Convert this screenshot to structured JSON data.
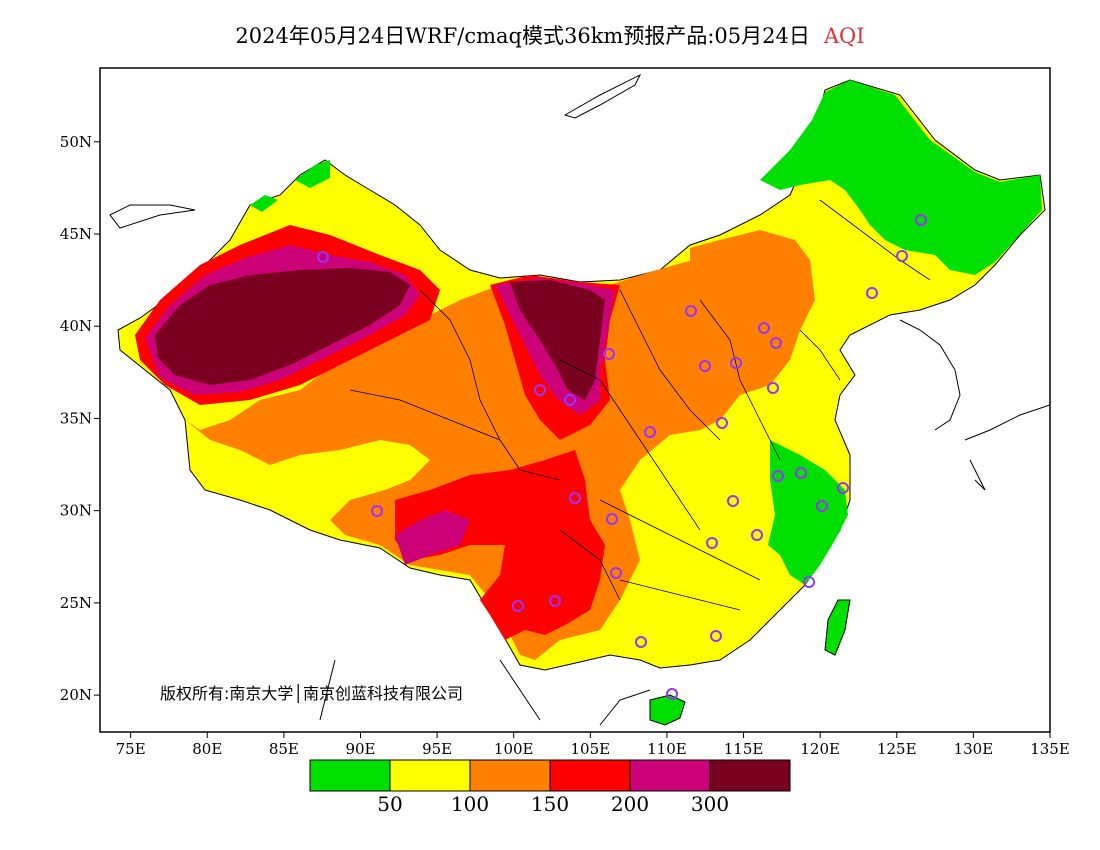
{
  "header": {
    "title": "2024年05月24日WRF/cmaq模式36km预报产品:05月24日",
    "variable": "AQI"
  },
  "map": {
    "lon_ticks": [
      "75E",
      "80E",
      "85E",
      "90E",
      "95E",
      "100E",
      "105E",
      "110E",
      "115E",
      "120E",
      "125E",
      "130E",
      "135E"
    ],
    "lat_ticks": [
      "20N",
      "25N",
      "30N",
      "35N",
      "40N",
      "45N",
      "50N"
    ],
    "extent": {
      "lon": [
        73,
        135
      ],
      "lat": [
        18,
        54
      ]
    },
    "copyright": "版权所有:南京大学│南京创蓝科技有限公司",
    "colors": {
      "good": "#00e000",
      "moderate": "#ffff00",
      "usg": "#ff7f00",
      "unhealthy": "#ff0000",
      "very_unhealthy": "#cc0077",
      "hazardous": "#7a0020",
      "station_marker": "#9933ff"
    }
  },
  "colorbar": {
    "colors": [
      "#00e000",
      "#ffff00",
      "#ff7f00",
      "#ff0000",
      "#cc0077",
      "#7a0020"
    ],
    "labels": [
      "50",
      "100",
      "150",
      "200",
      "300"
    ]
  }
}
